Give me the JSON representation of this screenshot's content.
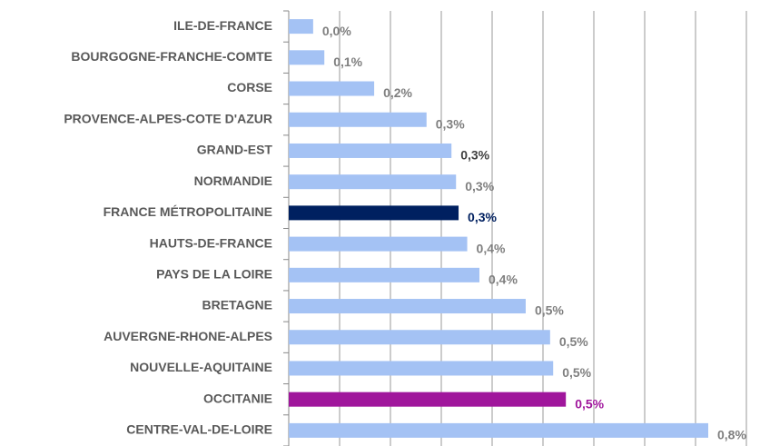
{
  "chart_data": {
    "type": "barh",
    "categories": [
      "ILE-DE-FRANCE",
      "BOURGOGNE-FRANCHE-COMTE",
      "CORSE",
      "PROVENCE-ALPES-COTE D'AZUR",
      "GRAND-EST",
      "NORMANDIE",
      "FRANCE MÉTROPOLITAINE",
      "HAUTS-DE-FRANCE",
      "PAYS DE LA LOIRE",
      "BRETAGNE",
      "AUVERGNE-RHONE-ALPES",
      "NOUVELLE-AQUITAINE",
      "OCCITANIE",
      "CENTRE-VAL-DE-LOIRE"
    ],
    "values": [
      0.048,
      0.07,
      0.168,
      0.271,
      0.32,
      0.329,
      0.334,
      0.351,
      0.375,
      0.466,
      0.514,
      0.52,
      0.545,
      0.825
    ],
    "value_labels": [
      "0,0%",
      "0,1%",
      "0,2%",
      "0,3%",
      "0,3%",
      "0,3%",
      "0,3%",
      "0,4%",
      "0,4%",
      "0,5%",
      "0,5%",
      "0,5%",
      "0,5%",
      "0,8%"
    ],
    "colors": [
      "#a4c2f4",
      "#a4c2f4",
      "#a4c2f4",
      "#a4c2f4",
      "#a4c2f4",
      "#a4c2f4",
      "#002060",
      "#a4c2f4",
      "#a4c2f4",
      "#a4c2f4",
      "#a4c2f4",
      "#a4c2f4",
      "#a0169c",
      "#a4c2f4"
    ],
    "label_colors": [
      "#7f7f7f",
      "#7f7f7f",
      "#7f7f7f",
      "#7f7f7f",
      "#404040",
      "#7f7f7f",
      "#002060",
      "#7f7f7f",
      "#7f7f7f",
      "#7f7f7f",
      "#7f7f7f",
      "#7f7f7f",
      "#a0169c",
      "#7f7f7f"
    ],
    "xlim": [
      0,
      0.9
    ],
    "xticks": [
      0,
      0.1,
      0.2,
      0.3,
      0.4,
      0.5,
      0.6,
      0.7,
      0.8,
      0.9
    ],
    "grid": true
  }
}
